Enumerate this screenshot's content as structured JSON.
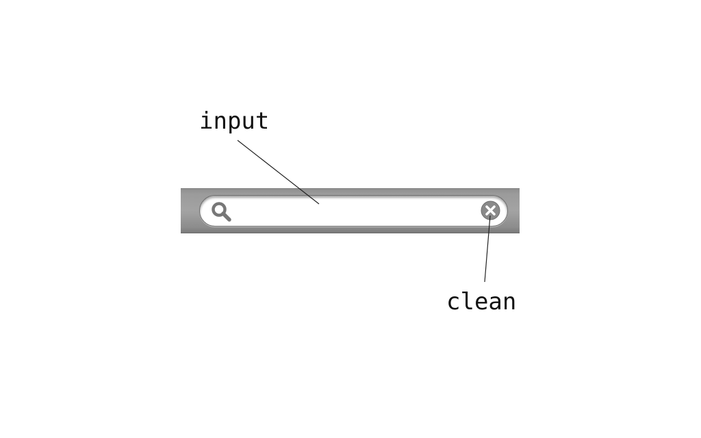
{
  "callouts": {
    "input_label": "input",
    "clean_label": "clean"
  },
  "search": {
    "value": "",
    "placeholder": ""
  },
  "icons": {
    "search": "search-icon",
    "clear": "close-circle-icon"
  },
  "colors": {
    "bar": "#9b9b9b",
    "field": "#ffffff",
    "icon": "#777777",
    "label": "#111111"
  }
}
